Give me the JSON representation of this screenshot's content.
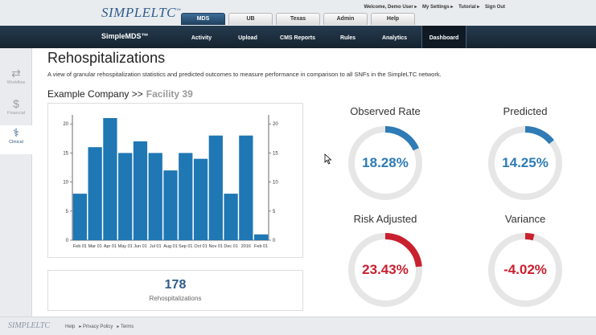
{
  "header": {
    "logo": "SIMPLELTC",
    "links": [
      "Welcome, Demo User",
      "My Settings",
      "Tutorial",
      "Sign Out"
    ],
    "tabs": [
      {
        "label": "MDS",
        "active": true
      },
      {
        "label": "UB",
        "active": false
      },
      {
        "label": "Texas",
        "active": false
      },
      {
        "label": "Admin",
        "active": false
      },
      {
        "label": "Help",
        "active": false
      }
    ]
  },
  "nav": {
    "product": "SimpleMDS™",
    "items": [
      {
        "label": "Activity",
        "active": false
      },
      {
        "label": "Upload",
        "active": false
      },
      {
        "label": "CMS Reports",
        "active": false
      },
      {
        "label": "Rules",
        "active": false
      },
      {
        "label": "Analytics",
        "active": false
      },
      {
        "label": "Dashboard",
        "active": true
      }
    ]
  },
  "sidebar": {
    "items": [
      {
        "label": "Workflow",
        "icon": "arrows-icon",
        "active": false
      },
      {
        "label": "Financial",
        "icon": "dollar-icon",
        "active": false
      },
      {
        "label": "Clinical",
        "icon": "stethoscope-icon",
        "active": true
      }
    ]
  },
  "main": {
    "title": "Rehospitalizations",
    "description": "A view of granular rehospitalization statistics and predicted outcomes to measure performance in comparison to all SNFs in the SimpleLTC network.",
    "company": "Example Company >>",
    "facility": "Facility 39",
    "total": {
      "value": "178",
      "label": "Rehospitalizations"
    }
  },
  "gauges": [
    {
      "title": "Observed Rate",
      "value": "18.28%",
      "fraction": 0.1828,
      "color": "#2e7bb5"
    },
    {
      "title": "Predicted",
      "value": "14.25%",
      "fraction": 0.1425,
      "color": "#2e7bb5"
    },
    {
      "title": "Risk Adjusted",
      "value": "23.43%",
      "fraction": 0.2343,
      "color": "#c9202f"
    },
    {
      "title": "Variance",
      "value": "-4.02%",
      "fraction": 0.0402,
      "color": "#c9202f"
    }
  ],
  "chart_data": {
    "type": "bar",
    "categories": [
      "Feb 01",
      "Mar 01",
      "Apr 01",
      "May 01",
      "Jun 01",
      "Jul 01",
      "Aug 01",
      "Sep 01",
      "Oct 01",
      "Nov 01",
      "Dec 01",
      "2016",
      "Feb 01"
    ],
    "values": [
      8,
      16,
      21,
      15,
      17,
      15,
      12,
      15,
      14,
      18,
      8,
      18,
      1
    ],
    "ylim": [
      0,
      21
    ],
    "yticks": [
      0,
      5,
      10,
      15,
      20
    ],
    "color": "#1f77b4",
    "grid": false
  },
  "footer": {
    "logo": "SIMPLELTC",
    "links": [
      "Help",
      "Privacy Policy",
      "Terms"
    ]
  }
}
